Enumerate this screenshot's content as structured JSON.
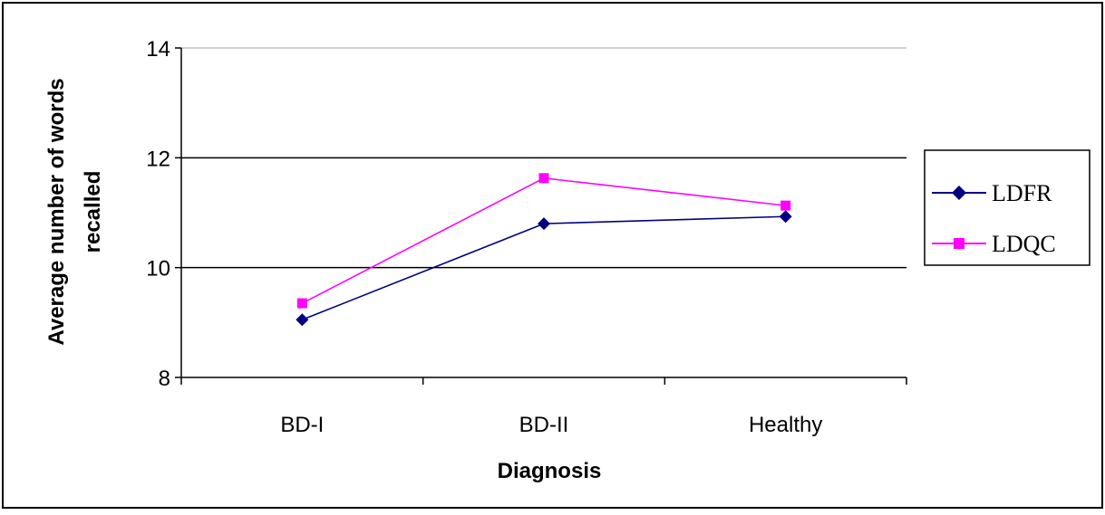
{
  "chart_data": {
    "type": "line",
    "title": "",
    "xlabel": "Diagnosis",
    "ylabel": "Average number of words recalled",
    "ylabel_lines": [
      "Average number of words",
      "recalled"
    ],
    "categories": [
      "BD-I",
      "BD-II",
      "Healthy"
    ],
    "ylim": [
      8,
      14
    ],
    "yticks": [
      8,
      10,
      12,
      14
    ],
    "ytick_labels": [
      "8",
      "10",
      "12",
      "14"
    ],
    "grid": true,
    "legend_position": "right",
    "series": [
      {
        "name": "LDFR",
        "values": [
          9.05,
          10.8,
          10.93
        ],
        "color": "#000080",
        "marker": "diamond"
      },
      {
        "name": "LDQC",
        "values": [
          9.35,
          11.63,
          11.13
        ],
        "color": "#ff00ff",
        "marker": "square"
      }
    ]
  }
}
